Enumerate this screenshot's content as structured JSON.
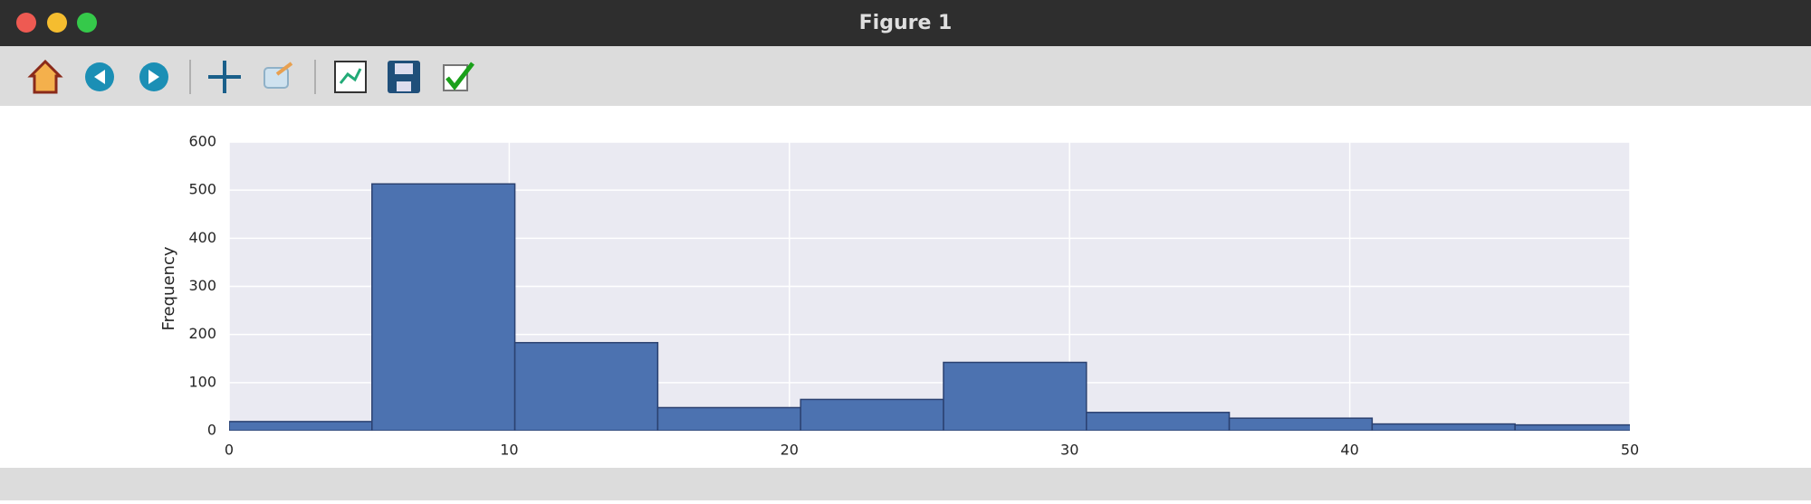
{
  "window": {
    "title": "Figure 1"
  },
  "chart_data": {
    "type": "histogram",
    "ylabel": "Frequency",
    "bins": [
      0,
      5.1,
      10.2,
      15.3,
      20.4,
      25.5,
      30.6,
      35.7,
      40.8,
      45.9,
      51
    ],
    "counts": [
      19,
      513,
      183,
      48,
      65,
      142,
      38,
      26,
      14,
      12
    ],
    "color": "#4c72b0",
    "edgecolor": "#2b4170",
    "xlim": [
      0,
      50
    ],
    "xticks": [
      0,
      10,
      20,
      30,
      40,
      50
    ],
    "ylim": [
      0,
      600
    ],
    "yticks": [
      0,
      100,
      200,
      300,
      400,
      500,
      600
    ],
    "grid": true
  }
}
